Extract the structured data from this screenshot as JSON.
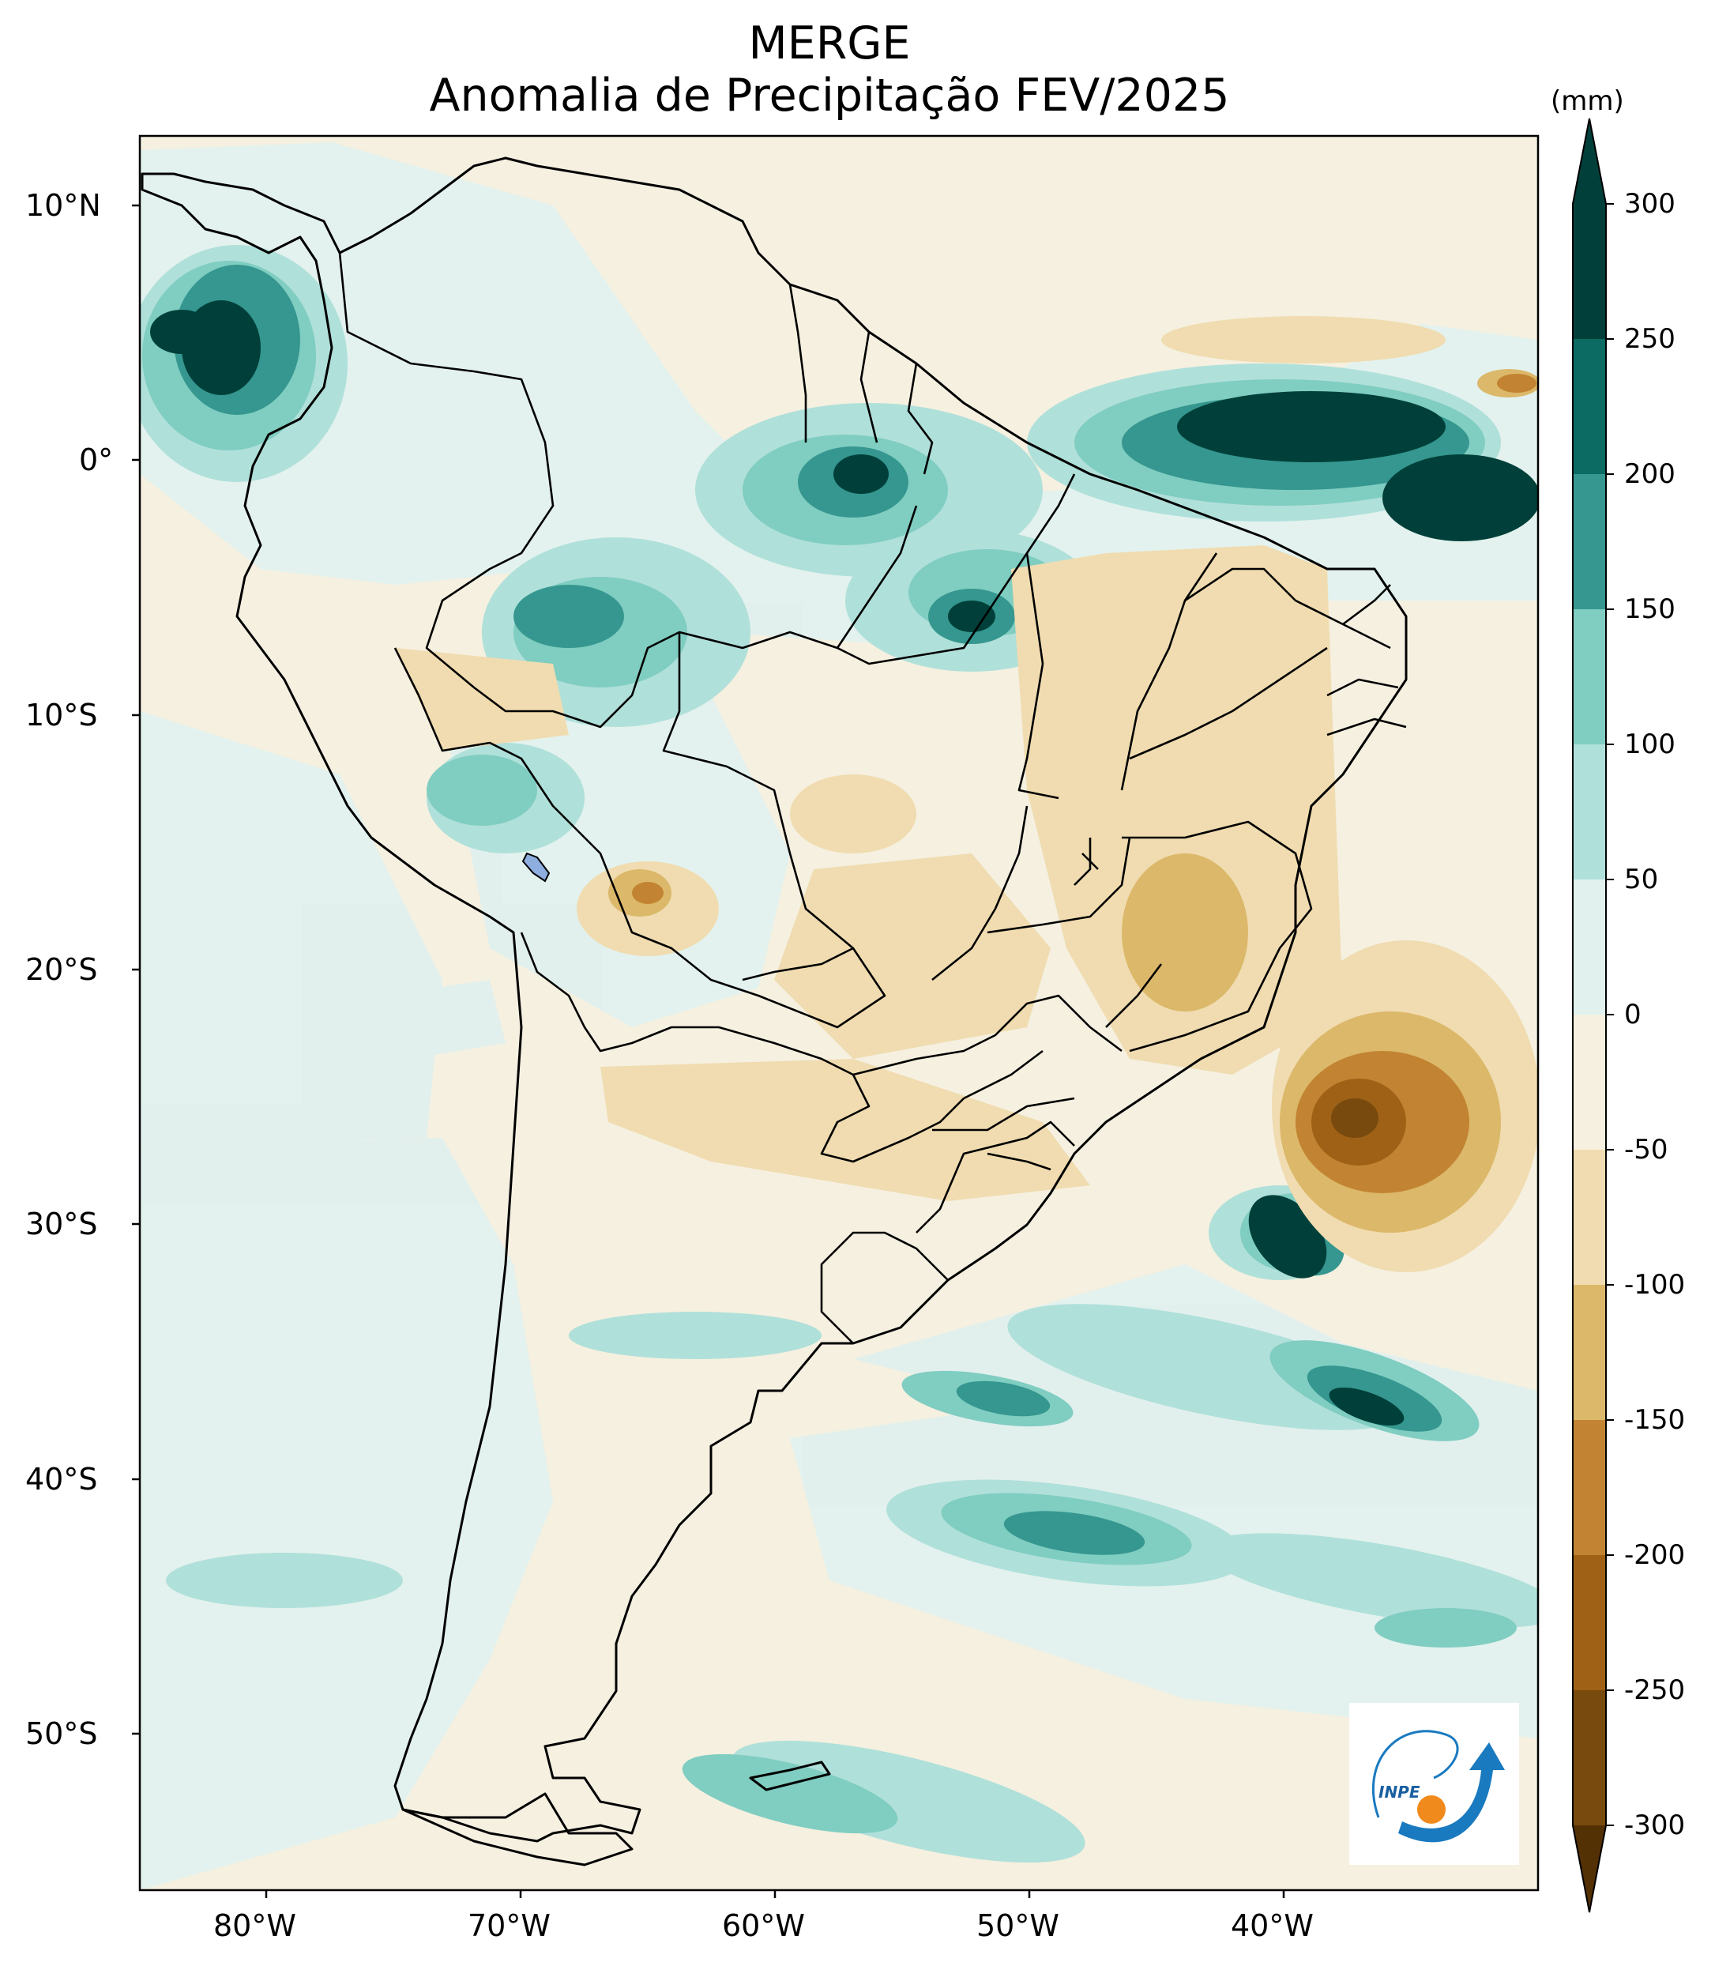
{
  "title_line1": "MERGE",
  "title_line2": "Anomalia de Precipitação FEV/2025",
  "colorbar": {
    "unit": "(mm)",
    "levels": [
      "300",
      "250",
      "200",
      "150",
      "100",
      "50",
      "0",
      "-50",
      "-100",
      "-150",
      "-200",
      "-250",
      "-300"
    ],
    "colors": [
      "#01403a",
      "#0c6b63",
      "#35978f",
      "#80cdc1",
      "#b0e0da",
      "#e1f1ee",
      "#f5f0e0",
      "#f0dcb0",
      "#dcb86a",
      "#c28432",
      "#9e6116",
      "#784a0d",
      "#543005"
    ]
  },
  "axes": {
    "lat_ticks": [
      "10°N",
      "0°",
      "10°S",
      "20°S",
      "30°S",
      "40°S",
      "50°S"
    ],
    "lon_ticks": [
      "80°W",
      "70°W",
      "60°W",
      "50°W",
      "40°W"
    ]
  },
  "logo": {
    "text": "INPE"
  }
}
